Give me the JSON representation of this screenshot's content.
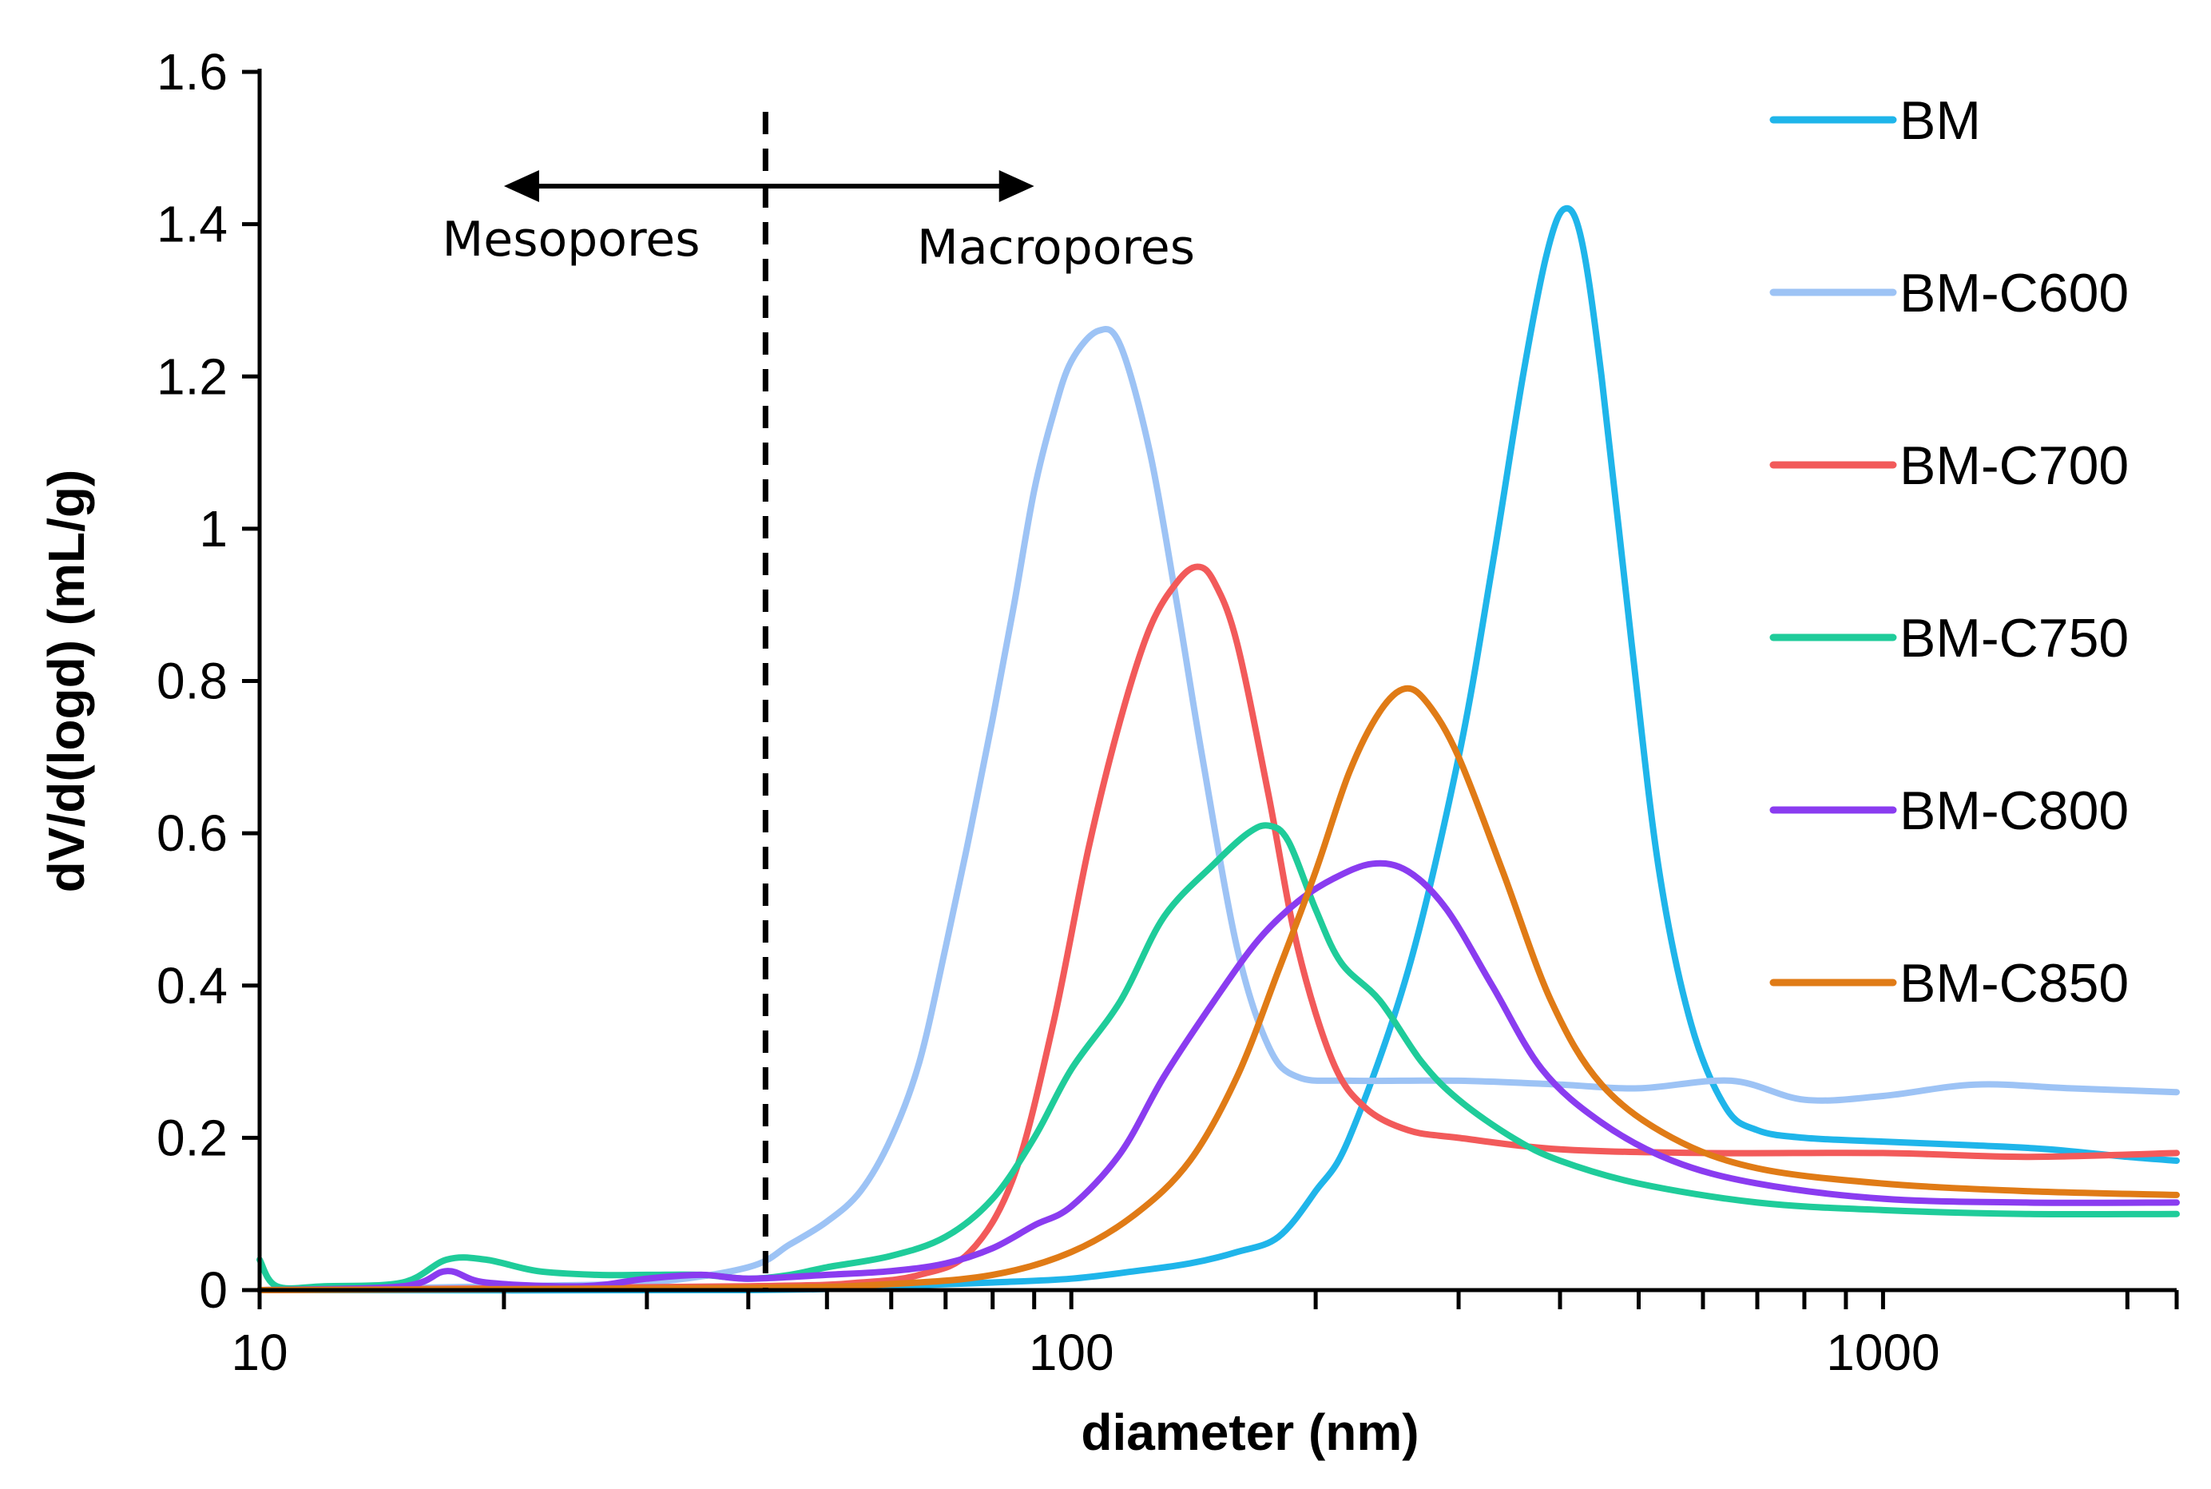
{
  "chart_data": {
    "type": "line",
    "title": "",
    "xlabel": "diameter (nm)",
    "ylabel": "dV/d(logd) (mL/g)",
    "xscale": "log",
    "xlim": [
      10,
      2300
    ],
    "ylim": [
      0,
      1.6
    ],
    "xticks": [
      10,
      100,
      1000
    ],
    "xtick_labels": [
      "10",
      "100",
      "1000"
    ],
    "yticks": [
      0,
      0.2,
      0.4,
      0.6,
      0.8,
      1.0,
      1.2,
      1.4,
      1.6
    ],
    "ytick_labels": [
      "0",
      "0.2",
      "0.4",
      "0.6",
      "0.8",
      "1",
      "1.2",
      "1.4",
      "1.6"
    ],
    "grid": false,
    "legend_position": "right",
    "annotations": {
      "boundary_x": 42,
      "arrow_y": 1.45,
      "arrow_left_x": 20,
      "arrow_right_x": 90,
      "left_label": "Mesopores",
      "right_label": "Macropores"
    },
    "series": [
      {
        "name": "BM",
        "color": "#1FB5EA",
        "points": [
          [
            10,
            0
          ],
          [
            40,
            0
          ],
          [
            60,
            0.005
          ],
          [
            80,
            0.01
          ],
          [
            100,
            0.015
          ],
          [
            120,
            0.025
          ],
          [
            140,
            0.035
          ],
          [
            160,
            0.05
          ],
          [
            180,
            0.07
          ],
          [
            200,
            0.13
          ],
          [
            220,
            0.2
          ],
          [
            260,
            0.42
          ],
          [
            300,
            0.7
          ],
          [
            330,
            0.95
          ],
          [
            360,
            1.2
          ],
          [
            385,
            1.36
          ],
          [
            405,
            1.42
          ],
          [
            425,
            1.38
          ],
          [
            450,
            1.2
          ],
          [
            490,
            0.85
          ],
          [
            530,
            0.55
          ],
          [
            580,
            0.35
          ],
          [
            640,
            0.24
          ],
          [
            700,
            0.21
          ],
          [
            800,
            0.2
          ],
          [
            1000,
            0.195
          ],
          [
            1300,
            0.19
          ],
          [
            1600,
            0.185
          ],
          [
            2000,
            0.175
          ],
          [
            2300,
            0.17
          ]
        ]
      },
      {
        "name": "BM-C600",
        "color": "#9DC3F5",
        "points": [
          [
            10,
            0
          ],
          [
            20,
            0.005
          ],
          [
            30,
            0.01
          ],
          [
            40,
            0.03
          ],
          [
            45,
            0.06
          ],
          [
            50,
            0.09
          ],
          [
            55,
            0.13
          ],
          [
            60,
            0.2
          ],
          [
            65,
            0.3
          ],
          [
            70,
            0.45
          ],
          [
            75,
            0.6
          ],
          [
            80,
            0.75
          ],
          [
            85,
            0.9
          ],
          [
            90,
            1.05
          ],
          [
            95,
            1.15
          ],
          [
            100,
            1.22
          ],
          [
            108,
            1.26
          ],
          [
            115,
            1.24
          ],
          [
            125,
            1.1
          ],
          [
            135,
            0.9
          ],
          [
            145,
            0.7
          ],
          [
            160,
            0.45
          ],
          [
            175,
            0.32
          ],
          [
            190,
            0.28
          ],
          [
            220,
            0.275
          ],
          [
            300,
            0.275
          ],
          [
            400,
            0.27
          ],
          [
            500,
            0.265
          ],
          [
            650,
            0.275
          ],
          [
            800,
            0.25
          ],
          [
            1000,
            0.255
          ],
          [
            1300,
            0.27
          ],
          [
            1700,
            0.265
          ],
          [
            2300,
            0.26
          ]
        ]
      },
      {
        "name": "BM-C700",
        "color": "#F25A5A",
        "points": [
          [
            10,
            0
          ],
          [
            40,
            0.005
          ],
          [
            55,
            0.01
          ],
          [
            65,
            0.02
          ],
          [
            75,
            0.05
          ],
          [
            85,
            0.15
          ],
          [
            95,
            0.35
          ],
          [
            105,
            0.58
          ],
          [
            115,
            0.75
          ],
          [
            125,
            0.87
          ],
          [
            135,
            0.93
          ],
          [
            143,
            0.95
          ],
          [
            150,
            0.93
          ],
          [
            160,
            0.85
          ],
          [
            175,
            0.65
          ],
          [
            190,
            0.45
          ],
          [
            210,
            0.3
          ],
          [
            230,
            0.24
          ],
          [
            260,
            0.21
          ],
          [
            300,
            0.2
          ],
          [
            400,
            0.185
          ],
          [
            600,
            0.18
          ],
          [
            1000,
            0.18
          ],
          [
            1500,
            0.175
          ],
          [
            2300,
            0.18
          ]
        ]
      },
      {
        "name": "BM-C750",
        "color": "#1FCC9A",
        "points": [
          [
            10,
            0.04
          ],
          [
            10.5,
            0.005
          ],
          [
            12,
            0.005
          ],
          [
            15,
            0.01
          ],
          [
            17,
            0.04
          ],
          [
            19,
            0.04
          ],
          [
            22,
            0.025
          ],
          [
            26,
            0.02
          ],
          [
            30,
            0.02
          ],
          [
            35,
            0.02
          ],
          [
            40,
            0.015
          ],
          [
            45,
            0.02
          ],
          [
            50,
            0.03
          ],
          [
            60,
            0.045
          ],
          [
            70,
            0.07
          ],
          [
            80,
            0.12
          ],
          [
            90,
            0.2
          ],
          [
            100,
            0.29
          ],
          [
            115,
            0.38
          ],
          [
            130,
            0.49
          ],
          [
            150,
            0.56
          ],
          [
            165,
            0.6
          ],
          [
            175,
            0.61
          ],
          [
            185,
            0.59
          ],
          [
            200,
            0.5
          ],
          [
            215,
            0.43
          ],
          [
            240,
            0.38
          ],
          [
            270,
            0.3
          ],
          [
            300,
            0.25
          ],
          [
            350,
            0.2
          ],
          [
            400,
            0.17
          ],
          [
            500,
            0.14
          ],
          [
            700,
            0.115
          ],
          [
            1000,
            0.105
          ],
          [
            1500,
            0.1
          ],
          [
            2300,
            0.1
          ]
        ]
      },
      {
        "name": "BM-C800",
        "color": "#8A3CF0",
        "points": [
          [
            10,
            0
          ],
          [
            15,
            0.005
          ],
          [
            17,
            0.025
          ],
          [
            19,
            0.01
          ],
          [
            25,
            0.005
          ],
          [
            30,
            0.015
          ],
          [
            35,
            0.02
          ],
          [
            40,
            0.015
          ],
          [
            50,
            0.02
          ],
          [
            60,
            0.025
          ],
          [
            70,
            0.035
          ],
          [
            80,
            0.055
          ],
          [
            90,
            0.085
          ],
          [
            100,
            0.11
          ],
          [
            115,
            0.18
          ],
          [
            130,
            0.28
          ],
          [
            150,
            0.38
          ],
          [
            170,
            0.46
          ],
          [
            190,
            0.51
          ],
          [
            210,
            0.54
          ],
          [
            235,
            0.56
          ],
          [
            260,
            0.55
          ],
          [
            290,
            0.5
          ],
          [
            330,
            0.4
          ],
          [
            380,
            0.29
          ],
          [
            450,
            0.22
          ],
          [
            550,
            0.17
          ],
          [
            700,
            0.14
          ],
          [
            1000,
            0.12
          ],
          [
            1500,
            0.115
          ],
          [
            2300,
            0.115
          ]
        ]
      },
      {
        "name": "BM-C850",
        "color": "#E07B16",
        "points": [
          [
            10,
            0
          ],
          [
            40,
            0.003
          ],
          [
            60,
            0.008
          ],
          [
            80,
            0.02
          ],
          [
            100,
            0.05
          ],
          [
            120,
            0.1
          ],
          [
            140,
            0.17
          ],
          [
            160,
            0.28
          ],
          [
            180,
            0.42
          ],
          [
            200,
            0.55
          ],
          [
            220,
            0.68
          ],
          [
            240,
            0.76
          ],
          [
            258,
            0.79
          ],
          [
            275,
            0.77
          ],
          [
            300,
            0.7
          ],
          [
            340,
            0.55
          ],
          [
            390,
            0.38
          ],
          [
            450,
            0.27
          ],
          [
            550,
            0.2
          ],
          [
            700,
            0.16
          ],
          [
            1000,
            0.14
          ],
          [
            1500,
            0.13
          ],
          [
            2300,
            0.125
          ]
        ]
      }
    ]
  }
}
